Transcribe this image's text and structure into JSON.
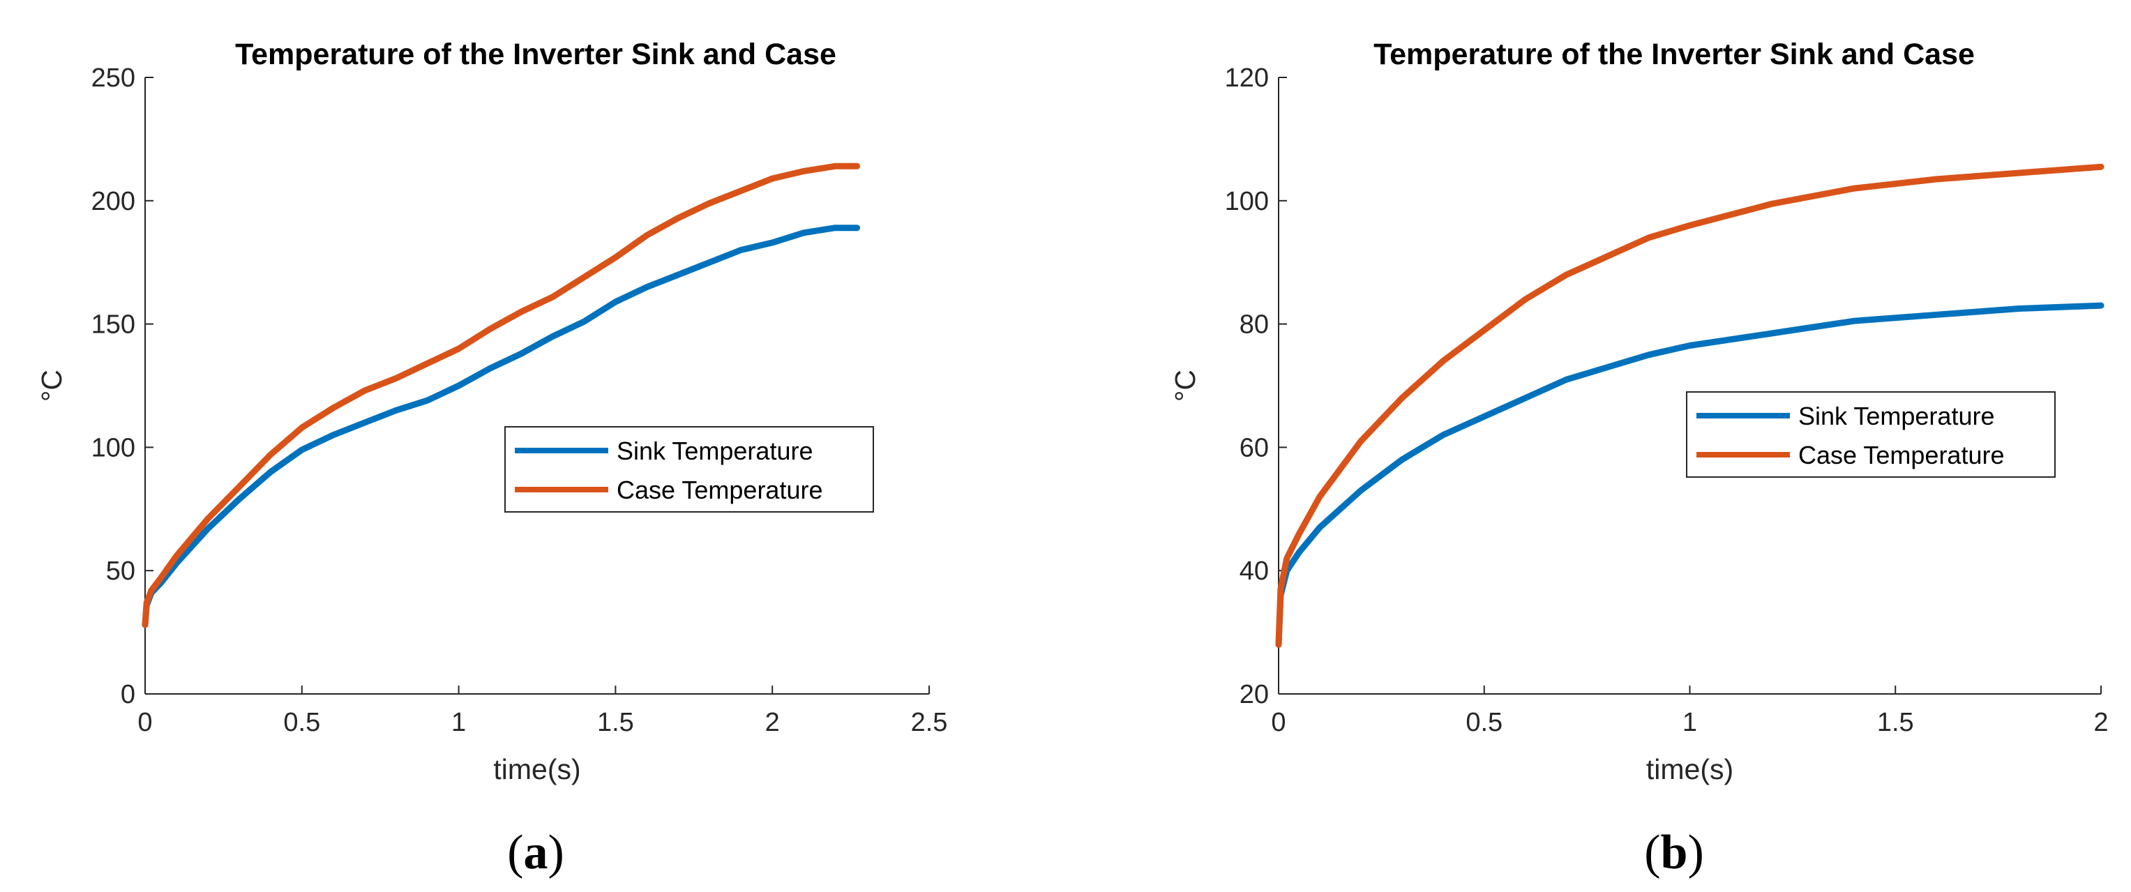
{
  "chart_data": [
    {
      "type": "line",
      "panel_label": {
        "open": "(",
        "letter": "a",
        "close": ")"
      },
      "title": "Temperature of the Inverter Sink and Case",
      "xlabel": "time(s)",
      "ylabel": "°C",
      "xlim": [
        0,
        2.5
      ],
      "ylim": [
        0,
        250
      ],
      "xticks": [
        0,
        0.5,
        1,
        1.5,
        2,
        2.5
      ],
      "xtick_labels": [
        "0",
        "0.5",
        "1",
        "1.5",
        "2",
        "2.5"
      ],
      "yticks": [
        0,
        50,
        100,
        150,
        200,
        250
      ],
      "ytick_labels": [
        "0",
        "50",
        "100",
        "150",
        "200",
        "250"
      ],
      "legend_position": "center-right",
      "series": [
        {
          "name": "Sink Temperature",
          "color": "#0072BD",
          "x": [
            0,
            0.005,
            0.02,
            0.05,
            0.1,
            0.2,
            0.3,
            0.4,
            0.5,
            0.6,
            0.7,
            0.8,
            0.9,
            1.0,
            1.1,
            1.2,
            1.3,
            1.4,
            1.5,
            1.6,
            1.7,
            1.8,
            1.9,
            2.0,
            2.1,
            2.2,
            2.27
          ],
          "values": [
            28,
            36,
            41,
            45,
            53,
            67,
            79,
            90,
            99,
            105,
            110,
            115,
            119,
            125,
            132,
            138,
            145,
            151,
            159,
            165,
            170,
            175,
            180,
            183,
            187,
            189,
            189
          ]
        },
        {
          "name": "Case Temperature",
          "color": "#D95319",
          "x": [
            0,
            0.005,
            0.02,
            0.05,
            0.1,
            0.2,
            0.3,
            0.4,
            0.5,
            0.6,
            0.7,
            0.8,
            0.9,
            1.0,
            1.1,
            1.2,
            1.3,
            1.4,
            1.5,
            1.6,
            1.7,
            1.8,
            1.9,
            2.0,
            2.1,
            2.2,
            2.27
          ],
          "values": [
            28,
            37,
            42,
            47,
            56,
            71,
            84,
            97,
            108,
            116,
            123,
            128,
            134,
            140,
            148,
            155,
            161,
            169,
            177,
            186,
            193,
            199,
            204,
            209,
            212,
            214,
            214
          ]
        }
      ]
    },
    {
      "type": "line",
      "panel_label": {
        "open": "(",
        "letter": "b",
        "close": ")"
      },
      "title": "Temperature of the Inverter Sink and Case",
      "xlabel": "time(s)",
      "ylabel": "°C",
      "xlim": [
        0,
        2
      ],
      "ylim": [
        20,
        120
      ],
      "xticks": [
        0,
        0.5,
        1,
        1.5,
        2
      ],
      "xtick_labels": [
        "0",
        "0.5",
        "1",
        "1.5",
        "2"
      ],
      "yticks": [
        20,
        40,
        60,
        80,
        100,
        120
      ],
      "ytick_labels": [
        "20",
        "40",
        "60",
        "80",
        "100",
        "120"
      ],
      "legend_position": "center-right",
      "series": [
        {
          "name": "Sink Temperature",
          "color": "#0072BD",
          "x": [
            0,
            0.005,
            0.02,
            0.05,
            0.1,
            0.2,
            0.3,
            0.4,
            0.5,
            0.6,
            0.7,
            0.8,
            0.9,
            1.0,
            1.2,
            1.4,
            1.6,
            1.8,
            2.0
          ],
          "values": [
            28,
            36,
            40,
            43,
            47,
            53,
            58,
            62,
            65,
            68,
            71,
            73,
            75,
            76.5,
            78.5,
            80.5,
            81.5,
            82.5,
            83
          ]
        },
        {
          "name": "Case Temperature",
          "color": "#D95319",
          "x": [
            0,
            0.005,
            0.02,
            0.05,
            0.1,
            0.2,
            0.3,
            0.4,
            0.5,
            0.6,
            0.7,
            0.8,
            0.9,
            1.0,
            1.2,
            1.4,
            1.6,
            1.8,
            2.0
          ],
          "values": [
            28,
            37,
            42,
            46,
            52,
            61,
            68,
            74,
            79,
            84,
            88,
            91,
            94,
            96,
            99.5,
            102,
            103.5,
            104.5,
            105.5
          ]
        }
      ]
    }
  ]
}
